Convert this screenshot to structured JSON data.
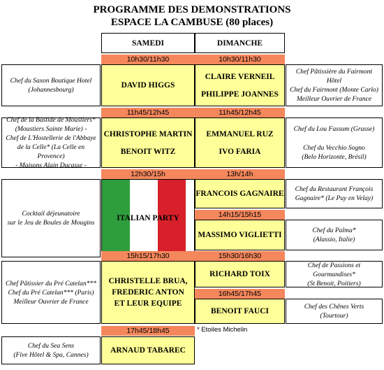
{
  "title_line1": "PROGRAMME DES DEMONSTRATIONS",
  "title_line2": "ESPACE LA CAMBUSE (80 places)",
  "headers": {
    "samedi": "SAMEDI",
    "dimanche": "DIMANCHE"
  },
  "slot1": {
    "time_sat": "10h30/11h30",
    "time_sun": "10h30/11h30",
    "chef_sat": "DAVID HIGGS",
    "chef_sun_1": "CLAIRE VERNEIL",
    "chef_sun_2": "PHILIPPE JOANNES",
    "left": [
      "Chef du Saxon Boutique Hotel",
      "(Johannesbourg)"
    ],
    "right": [
      "Chef Pâtissière du Fairmont Hôtel",
      "Chef du Fairmont (Monte Carlo)",
      "Meilleur Ouvrier de France"
    ]
  },
  "slot2": {
    "time_sat": "11h45/12h45",
    "time_sun": "11h45/12h45",
    "chef_sat_1": "CHRISTOPHE MARTIN",
    "chef_sat_2": "BENOIT WITZ",
    "chef_sun_1": "EMMANUEL RUZ",
    "chef_sun_2": "IVO FARIA",
    "left": [
      "Chef de la Bastide de Moustiers*",
      "(Moustiers Sainte Marie) -",
      "Chef de L'Hostellerie de l'Abbaye",
      "de la Celle* (La Celle en Provence)",
      "- Maisons Alain Ducasse -"
    ],
    "right_1": [
      "Chef du Lou Fassum (Grasse)"
    ],
    "right_2": [
      "Chef du Vecchio Sogno",
      "(Belo Horizonte, Brésil)"
    ]
  },
  "slot3": {
    "time_sat": "12h30/15h",
    "time_sun": "13h/14h",
    "party": "ITALIAN PARTY",
    "flag_colors": [
      "#2e9e3c",
      "#ffffff",
      "#d8202a"
    ],
    "left": [
      "Cocktail déjeunatoire",
      "sur le Jeu de Boules de Mougins"
    ],
    "chef_sun_a": "FRANCOIS GAGNAIRE",
    "right_a": [
      "Chef du Restaurant François",
      "Gagnaire* (Le Puy en Velay)"
    ],
    "time_sun_b": "14h15/15h15",
    "chef_sun_b": "MASSIMO VIGLIETTI",
    "right_b": [
      "Chef du Palma*",
      "(Alassio, Italie)"
    ]
  },
  "slot4": {
    "time_sat": "15h15/17h30",
    "time_sun_a": "15h30/16h30",
    "chef_sat": [
      "CHRISTELLE BRUA,",
      "FREDERIC ANTON",
      "ET LEUR EQUIPE"
    ],
    "left": [
      "Chef Pâtissier du Pré Catelan***",
      "Chef du Pré Catelan*** (Paris)",
      "Meilleur Ouvrier de France"
    ],
    "chef_sun_a": "RICHARD TOIX",
    "right_a": [
      "Chef de Passions et Gourmandises*",
      "(St Benoit, Poitiers)"
    ],
    "time_sun_b": "16h45/17h45",
    "chef_sun_b": "BENOIT FAUCI",
    "right_b": [
      "Chef des Chênes Verts",
      "(Tourtour)"
    ]
  },
  "slot5": {
    "time_sat": "17h45/18h45",
    "chef_sat": "ARNAUD TABAREC",
    "left": [
      "Chef du Sea Sens",
      "(Five Hôtel & Spa, Cannes)"
    ]
  },
  "footnote": "* Etoiles Michelin"
}
